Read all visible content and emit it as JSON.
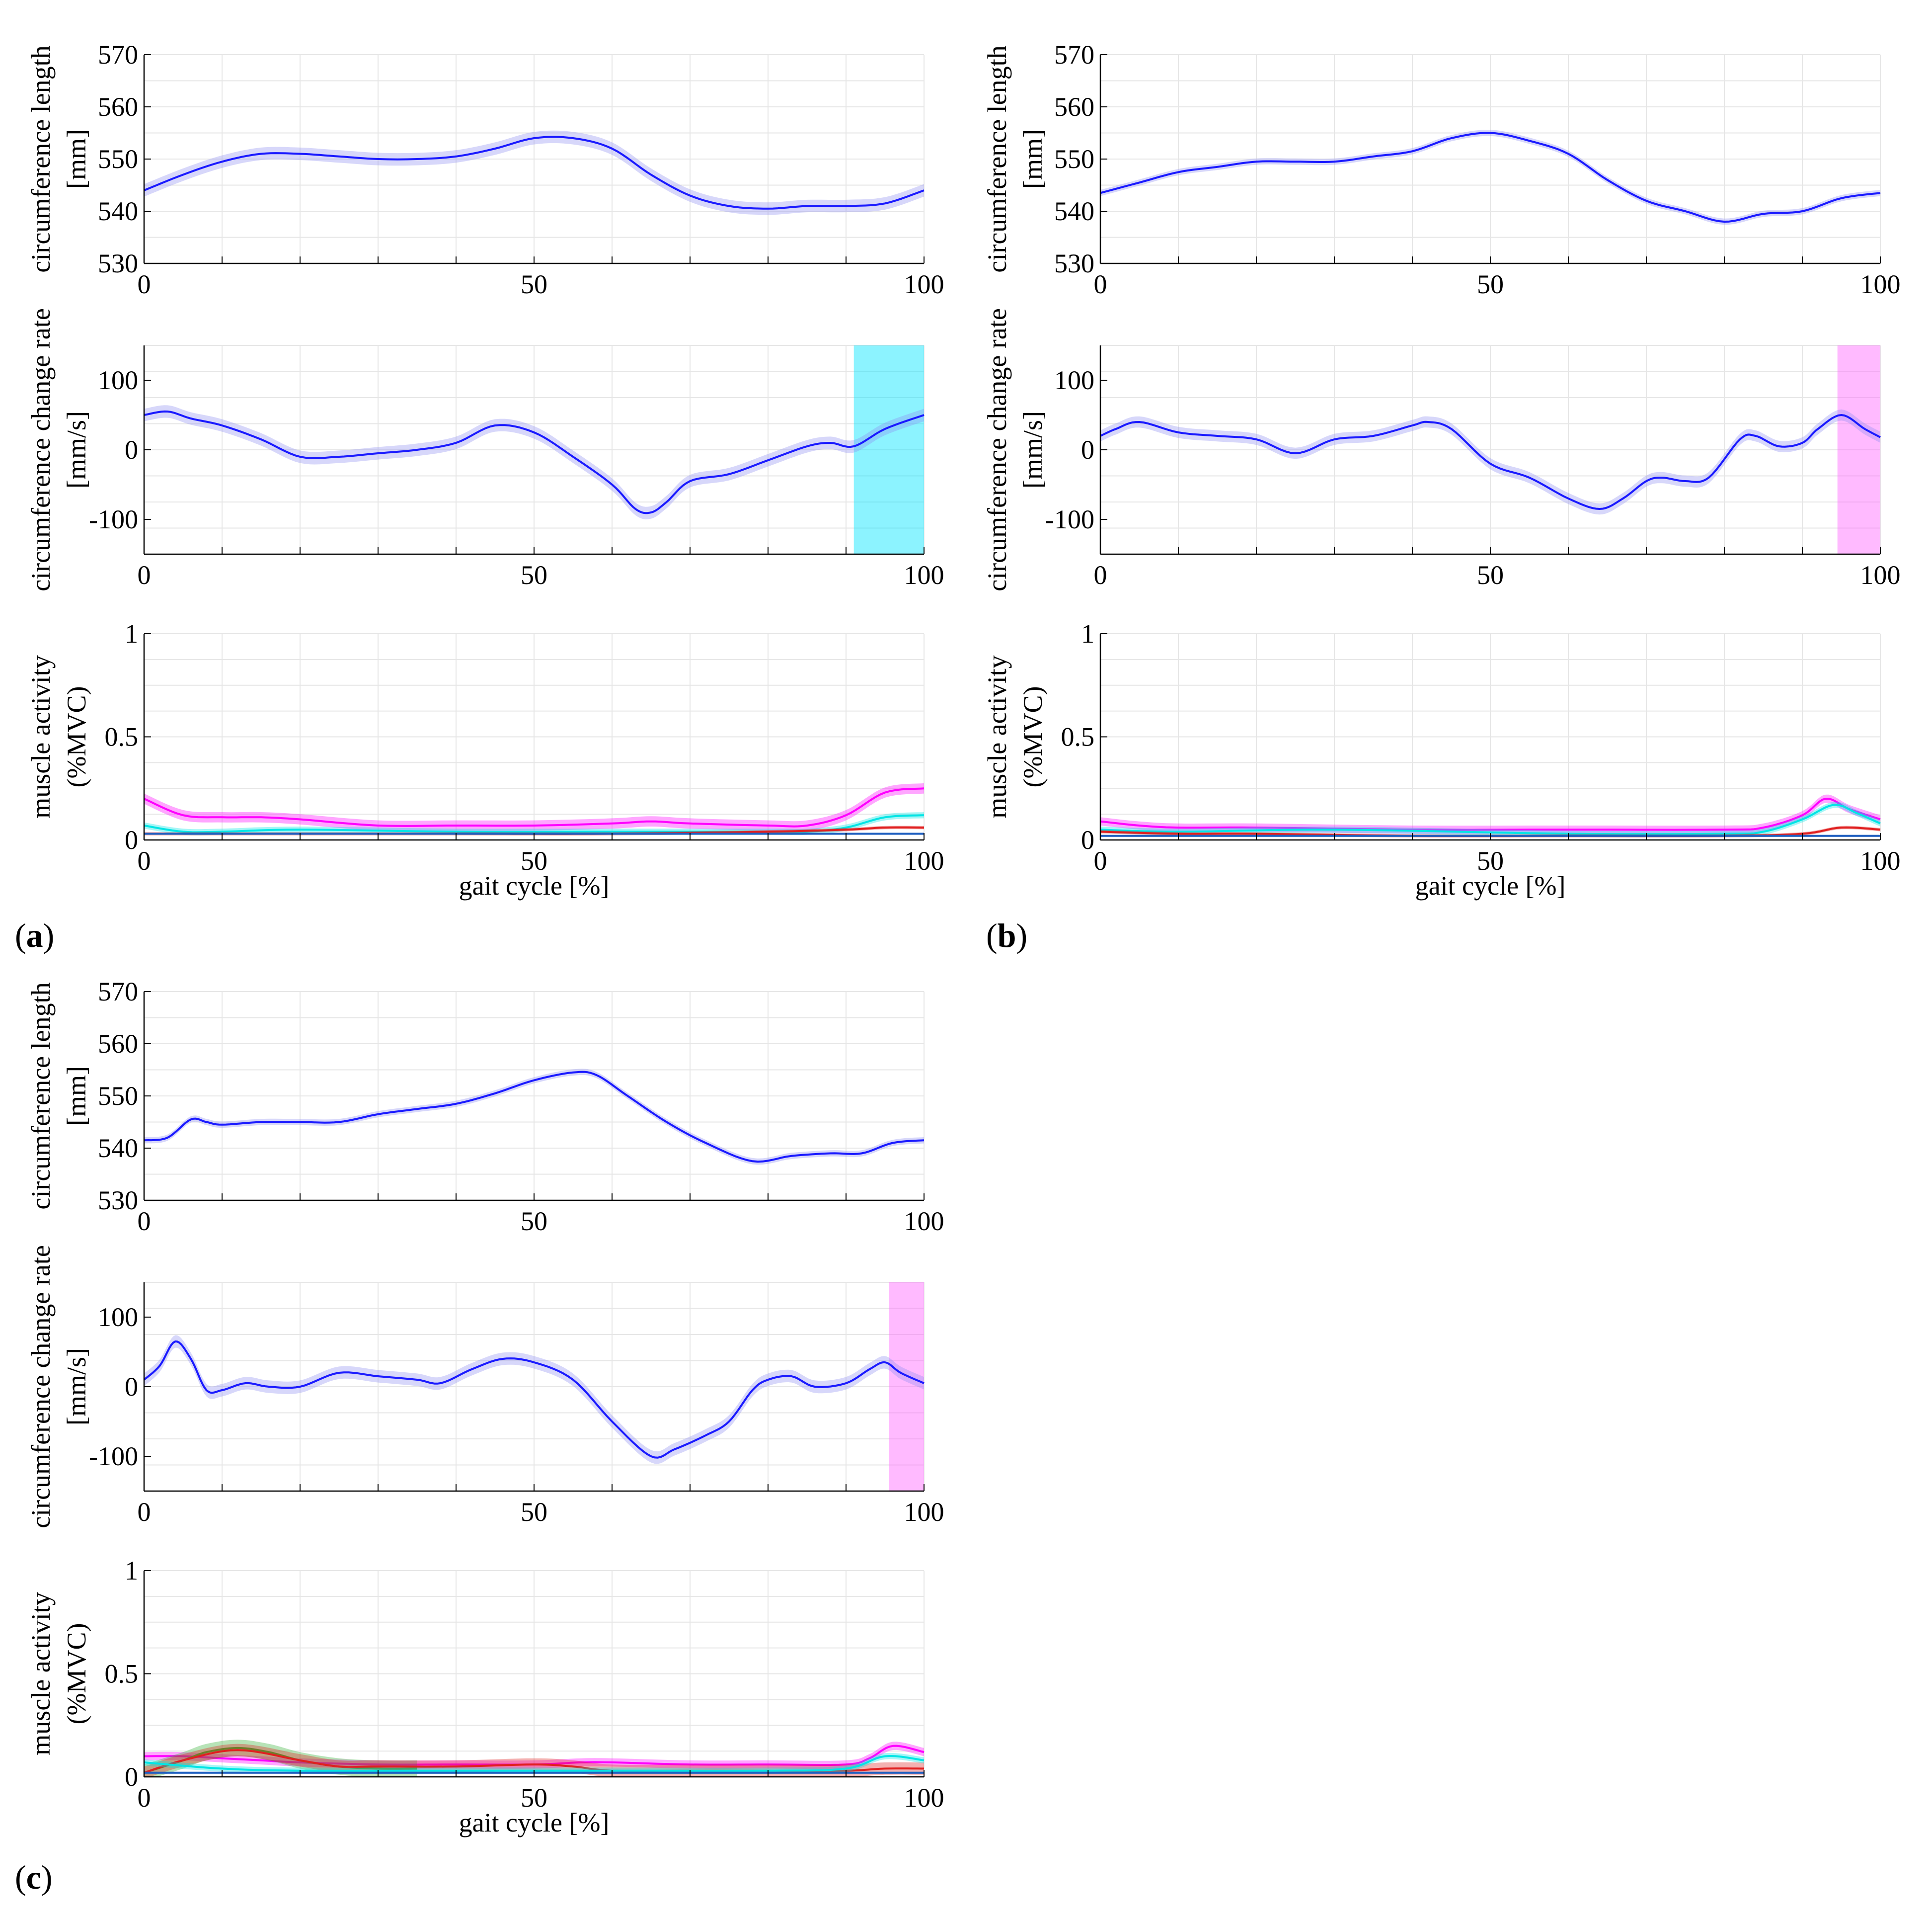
{
  "figure": {
    "labels": {
      "a": "a",
      "b": "b",
      "c": "c"
    },
    "colors": {
      "mean_line": "#1a1aff",
      "band": "#8c8cf0",
      "grid": "#e6e6e6",
      "highlight_cyan": "#00e5ff",
      "highlight_magenta": "#ff66ff"
    }
  },
  "chart_data": [
    {
      "panel": "a",
      "type": "line",
      "title": "",
      "ylabel": [
        "circumference length",
        "[mm]"
      ],
      "xlabel": "",
      "xlim": [
        0,
        100
      ],
      "ylim": [
        530,
        570
      ],
      "xticks": [
        "0",
        "50",
        "100"
      ],
      "yticks": [
        "530",
        "540",
        "550",
        "560",
        "570"
      ],
      "series": [
        {
          "name": "circumference length",
          "color": "#1a1aff",
          "band": 1.2,
          "x": [
            0,
            5,
            10,
            15,
            20,
            25,
            30,
            35,
            40,
            45,
            50,
            55,
            60,
            65,
            70,
            75,
            80,
            85,
            90,
            95,
            100
          ],
          "y": [
            544,
            547,
            549.5,
            551,
            551,
            550.5,
            550,
            550,
            550.5,
            552,
            554,
            554,
            552,
            547,
            543,
            541,
            540.5,
            541,
            541,
            541.5,
            544
          ]
        }
      ]
    },
    {
      "panel": "a",
      "type": "line",
      "title": "",
      "ylabel": [
        "circumference change rate",
        "[mm/s]"
      ],
      "xlabel": "",
      "xlim": [
        0,
        100
      ],
      "ylim": [
        -150,
        150
      ],
      "xticks": [
        "0",
        "50",
        "100"
      ],
      "yticks": [
        "-100",
        "0",
        "100"
      ],
      "highlight": {
        "x0": 91,
        "x1": 100,
        "color": "#00e5ff"
      },
      "series": [
        {
          "name": "circumference change rate",
          "color": "#1a1aff",
          "band": 9,
          "x": [
            0,
            3,
            6,
            10,
            15,
            20,
            25,
            30,
            35,
            40,
            45,
            50,
            55,
            60,
            63,
            65,
            67,
            70,
            75,
            80,
            85,
            88,
            91,
            95,
            100
          ],
          "y": [
            50,
            55,
            45,
            35,
            15,
            -10,
            -10,
            -5,
            0,
            10,
            35,
            25,
            -10,
            -50,
            -85,
            -90,
            -75,
            -45,
            -35,
            -15,
            5,
            10,
            5,
            30,
            50
          ]
        }
      ]
    },
    {
      "panel": "a",
      "type": "line",
      "title": "",
      "ylabel": [
        "muscle activity",
        "(%MVC)"
      ],
      "xlabel": "gait cycle [%]",
      "xlim": [
        0,
        100
      ],
      "ylim": [
        0,
        1
      ],
      "xticks": [
        "0",
        "50",
        "100"
      ],
      "yticks": [
        "0",
        "0.5",
        "1"
      ],
      "series": [
        {
          "name": "magenta",
          "color": "#ff00ff",
          "band": 0.025,
          "x": [
            0,
            5,
            10,
            15,
            20,
            30,
            40,
            50,
            60,
            65,
            70,
            80,
            85,
            90,
            95,
            100
          ],
          "y": [
            0.2,
            0.12,
            0.11,
            0.11,
            0.1,
            0.07,
            0.07,
            0.07,
            0.08,
            0.09,
            0.08,
            0.07,
            0.07,
            0.12,
            0.23,
            0.25
          ]
        },
        {
          "name": "cyan",
          "color": "#00e5e5",
          "band": 0.015,
          "x": [
            0,
            5,
            10,
            20,
            40,
            60,
            80,
            85,
            90,
            95,
            100
          ],
          "y": [
            0.07,
            0.04,
            0.04,
            0.05,
            0.04,
            0.04,
            0.04,
            0.04,
            0.06,
            0.11,
            0.12
          ]
        },
        {
          "name": "red",
          "color": "#e02020",
          "band": 0.008,
          "x": [
            0,
            20,
            40,
            60,
            80,
            90,
            95,
            100
          ],
          "y": [
            0.03,
            0.03,
            0.03,
            0.03,
            0.04,
            0.05,
            0.06,
            0.06
          ]
        },
        {
          "name": "blue",
          "color": "#2060c0",
          "band": 0.005,
          "x": [
            0,
            20,
            40,
            60,
            80,
            100
          ],
          "y": [
            0.03,
            0.03,
            0.03,
            0.03,
            0.03,
            0.03
          ]
        }
      ]
    },
    {
      "panel": "b",
      "type": "line",
      "title": "",
      "ylabel": [
        "circumference length",
        "[mm]"
      ],
      "xlabel": "",
      "xlim": [
        0,
        100
      ],
      "ylim": [
        530,
        570
      ],
      "xticks": [
        "0",
        "50",
        "100"
      ],
      "yticks": [
        "530",
        "540",
        "550",
        "560",
        "570"
      ],
      "series": [
        {
          "name": "circumference length",
          "color": "#1a1aff",
          "band": 0.6,
          "x": [
            0,
            5,
            10,
            15,
            20,
            25,
            30,
            35,
            40,
            45,
            50,
            55,
            60,
            65,
            70,
            75,
            80,
            85,
            90,
            95,
            100
          ],
          "y": [
            543.5,
            545.5,
            547.5,
            548.5,
            549.5,
            549.5,
            549.5,
            550.5,
            551.5,
            554,
            555,
            553.5,
            551,
            546,
            542,
            540,
            538,
            539.5,
            540,
            542.5,
            543.5
          ]
        }
      ]
    },
    {
      "panel": "b",
      "type": "line",
      "title": "",
      "ylabel": [
        "circumference change rate",
        "[mm/s]"
      ],
      "xlabel": "",
      "xlim": [
        0,
        100
      ],
      "ylim": [
        -150,
        150
      ],
      "xticks": [
        "0",
        "50",
        "100"
      ],
      "yticks": [
        "-100",
        "0",
        "100"
      ],
      "highlight": {
        "x0": 94.5,
        "x1": 100,
        "color": "#ff66ff"
      },
      "series": [
        {
          "name": "circumference change rate",
          "color": "#1a1aff",
          "band": 8,
          "x": [
            0,
            2,
            5,
            10,
            15,
            20,
            25,
            30,
            35,
            40,
            42,
            45,
            50,
            55,
            60,
            64,
            67,
            70,
            72,
            75,
            78,
            82,
            84,
            87,
            90,
            92,
            95,
            98,
            100
          ],
          "y": [
            20,
            30,
            40,
            25,
            20,
            15,
            -5,
            15,
            20,
            35,
            40,
            30,
            -20,
            -40,
            -70,
            -85,
            -70,
            -45,
            -40,
            -45,
            -40,
            15,
            20,
            5,
            10,
            30,
            50,
            30,
            18
          ]
        }
      ]
    },
    {
      "panel": "b",
      "type": "line",
      "title": "",
      "ylabel": [
        "muscle activity",
        "(%MVC)"
      ],
      "xlabel": "gait cycle [%]",
      "xlim": [
        0,
        100
      ],
      "ylim": [
        0,
        1
      ],
      "xticks": [
        "0",
        "50",
        "100"
      ],
      "yticks": [
        "0",
        "0.5",
        "1"
      ],
      "series": [
        {
          "name": "magenta",
          "color": "#ff00ff",
          "band": 0.02,
          "x": [
            0,
            5,
            10,
            20,
            40,
            60,
            80,
            85,
            90,
            93,
            96,
            100
          ],
          "y": [
            0.09,
            0.07,
            0.06,
            0.06,
            0.05,
            0.05,
            0.05,
            0.06,
            0.12,
            0.2,
            0.15,
            0.1
          ]
        },
        {
          "name": "cyan",
          "color": "#00e5e5",
          "band": 0.015,
          "x": [
            0,
            10,
            30,
            60,
            80,
            85,
            90,
            94,
            97,
            100
          ],
          "y": [
            0.05,
            0.04,
            0.05,
            0.03,
            0.03,
            0.04,
            0.1,
            0.17,
            0.13,
            0.08
          ]
        },
        {
          "name": "red",
          "color": "#e02020",
          "band": 0.008,
          "x": [
            0,
            10,
            20,
            40,
            60,
            80,
            90,
            95,
            100
          ],
          "y": [
            0.04,
            0.03,
            0.03,
            0.02,
            0.02,
            0.02,
            0.03,
            0.06,
            0.05
          ]
        },
        {
          "name": "blue",
          "color": "#2060c0",
          "band": 0.005,
          "x": [
            0,
            20,
            40,
            60,
            80,
            100
          ],
          "y": [
            0.02,
            0.02,
            0.02,
            0.02,
            0.02,
            0.02
          ]
        }
      ]
    },
    {
      "panel": "c",
      "type": "line",
      "title": "",
      "ylabel": [
        "circumference length",
        "[mm]"
      ],
      "xlabel": "",
      "xlim": [
        0,
        100
      ],
      "ylim": [
        530,
        570
      ],
      "xticks": [
        "0",
        "50",
        "100"
      ],
      "yticks": [
        "530",
        "540",
        "550",
        "560",
        "570"
      ],
      "series": [
        {
          "name": "circumference length",
          "color": "#1a1aff",
          "band": 0.6,
          "x": [
            0,
            3,
            6,
            8,
            10,
            15,
            20,
            25,
            30,
            35,
            40,
            45,
            50,
            55,
            58,
            62,
            67,
            72,
            78,
            83,
            88,
            92,
            96,
            100
          ],
          "y": [
            541.5,
            542,
            545.5,
            545,
            544.5,
            545,
            545,
            545,
            546.5,
            547.5,
            548.5,
            550.5,
            553,
            554.5,
            554,
            550,
            545,
            541,
            537.5,
            538.5,
            539,
            539,
            541,
            541.5
          ]
        }
      ]
    },
    {
      "panel": "c",
      "type": "line",
      "title": "",
      "ylabel": [
        "circumference change rate",
        "[mm/s]"
      ],
      "xlabel": "",
      "xlim": [
        0,
        100
      ],
      "ylim": [
        -150,
        150
      ],
      "xticks": [
        "0",
        "50",
        "100"
      ],
      "yticks": [
        "-100",
        "0",
        "100"
      ],
      "highlight": {
        "x0": 95.5,
        "x1": 100,
        "color": "#ff66ff"
      },
      "series": [
        {
          "name": "circumference change rate",
          "color": "#1a1aff",
          "band": 9,
          "x": [
            0,
            2,
            4,
            6,
            8,
            10,
            13,
            16,
            20,
            25,
            30,
            35,
            38,
            42,
            46,
            50,
            55,
            60,
            65,
            68,
            72,
            75,
            78,
            80,
            83,
            86,
            90,
            93,
            95,
            97,
            100
          ],
          "y": [
            10,
            30,
            65,
            40,
            -5,
            -5,
            5,
            0,
            0,
            20,
            15,
            10,
            5,
            25,
            40,
            35,
            10,
            -50,
            -100,
            -90,
            -70,
            -50,
            -5,
            10,
            15,
            0,
            5,
            25,
            35,
            20,
            5
          ]
        }
      ]
    },
    {
      "panel": "c",
      "type": "line",
      "title": "",
      "ylabel": [
        "muscle activity",
        "(%MVC)"
      ],
      "xlabel": "gait cycle [%]",
      "xlim": [
        0,
        100
      ],
      "ylim": [
        0,
        1
      ],
      "xticks": [
        "0",
        "50",
        "100"
      ],
      "yticks": [
        "0",
        "0.5",
        "1"
      ],
      "series": [
        {
          "name": "magenta",
          "color": "#ff00ff",
          "band": 0.02,
          "x": [
            0,
            5,
            10,
            15,
            20,
            30,
            40,
            50,
            56,
            60,
            70,
            80,
            90,
            93,
            96,
            100
          ],
          "y": [
            0.1,
            0.1,
            0.09,
            0.08,
            0.07,
            0.06,
            0.06,
            0.06,
            0.07,
            0.07,
            0.06,
            0.06,
            0.06,
            0.09,
            0.15,
            0.12
          ]
        },
        {
          "name": "green",
          "color": "#30b030",
          "band": 0.04,
          "x": [
            0,
            5,
            8,
            12,
            16,
            20,
            25,
            30,
            35
          ],
          "y": [
            0.02,
            0.08,
            0.12,
            0.14,
            0.12,
            0.08,
            0.05,
            0.04,
            0.04
          ]
        },
        {
          "name": "red",
          "color": "#e02020",
          "band": 0.03,
          "x": [
            0,
            5,
            12,
            20,
            25,
            30,
            40,
            50,
            55,
            60,
            70,
            80,
            90,
            95,
            100
          ],
          "y": [
            0.02,
            0.08,
            0.13,
            0.08,
            0.05,
            0.05,
            0.05,
            0.06,
            0.05,
            0.03,
            0.03,
            0.03,
            0.03,
            0.04,
            0.04
          ]
        },
        {
          "name": "cyan",
          "color": "#00e5e5",
          "band": 0.015,
          "x": [
            0,
            10,
            20,
            40,
            60,
            80,
            90,
            95,
            100
          ],
          "y": [
            0.07,
            0.04,
            0.03,
            0.03,
            0.03,
            0.03,
            0.04,
            0.1,
            0.08
          ]
        },
        {
          "name": "blue",
          "color": "#2060c0",
          "band": 0.005,
          "x": [
            0,
            20,
            40,
            60,
            80,
            100
          ],
          "y": [
            0.02,
            0.02,
            0.02,
            0.02,
            0.02,
            0.02
          ]
        }
      ]
    }
  ]
}
